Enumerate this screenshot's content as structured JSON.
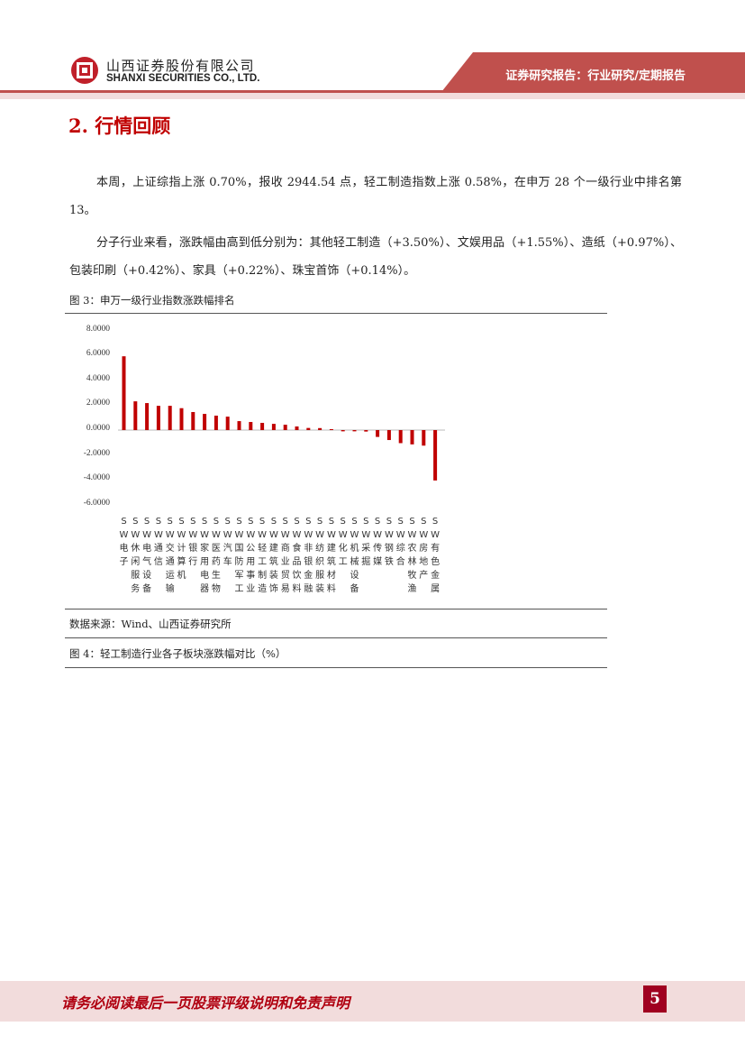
{
  "header": {
    "company_cn": "山西证券股份有限公司",
    "company_en": "SHANXI SECURITIES CO., LTD.",
    "report_type": "证券研究报告：行业研究/定期报告",
    "accent_color": "#c0504d"
  },
  "section": {
    "title": "2. 行情回顾"
  },
  "paragraphs": [
    "本周，上证综指上涨 0.70%，报收 2944.54 点，轻工制造指数上涨 0.58%，在申万 28 个一级行业中排名第 13。",
    "分子行业来看，涨跌幅由高到低分别为：其他轻工制造（+3.50%）、文娱用品（+1.55%）、造纸（+0.97%）、包装印刷（+0.42%）、家具（+0.22%）、珠宝首饰（+0.14%）。"
  ],
  "figure3": {
    "caption": "图 3：申万一级行业指数涨跌幅排名",
    "source": "数据来源：Wind、山西证券研究所"
  },
  "figure4": {
    "caption": "图 4：轻工制造行业各子板块涨跌幅对比（%）"
  },
  "chart_data": {
    "type": "bar",
    "title": "",
    "bar_color": "#c00000",
    "ylim": [
      -6,
      8
    ],
    "yticks": [
      "8.0000",
      "6.0000",
      "4.0000",
      "2.0000",
      "0.0000",
      "-2.0000",
      "-4.0000",
      "-6.0000"
    ],
    "ytick_values": [
      8,
      6,
      4,
      2,
      0,
      -2,
      -4,
      -6
    ],
    "grid": false,
    "categories": [
      "SW电子",
      "SW休闲服务",
      "SW电气设备",
      "SW通信",
      "SW交通运输",
      "SW计算机",
      "SW银行",
      "SW家用电器",
      "SW医药生物",
      "SW汽车",
      "SW国防军工",
      "SW公用事业",
      "SW轻工制造",
      "SW建筑装饰",
      "SW商业贸易",
      "SW食品饮料",
      "SW非银金融",
      "SW纺织服装",
      "SW建筑材料",
      "SW化工",
      "SW机械设备",
      "SW采掘",
      "SW传媒",
      "SW钢铁",
      "SW综合",
      "SW农林牧渔",
      "SW房地产",
      "SW有色金属"
    ],
    "values": [
      5.93,
      2.31,
      2.17,
      1.95,
      1.95,
      1.76,
      1.45,
      1.3,
      1.16,
      1.08,
      0.72,
      0.65,
      0.58,
      0.5,
      0.43,
      0.29,
      0.17,
      0.16,
      0.01,
      -0.1,
      -0.1,
      -0.12,
      -0.55,
      -0.8,
      -1.05,
      -1.15,
      -1.25,
      -4.05
    ]
  },
  "footer": {
    "disclaimer": "请务必阅读最后一页股票评级说明和免责声明",
    "page_number": "5"
  }
}
